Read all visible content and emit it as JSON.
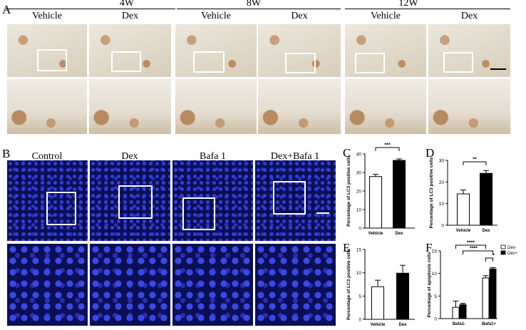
{
  "panelA": {
    "label": "A",
    "groups": [
      {
        "time": "4W",
        "vehicle": "Vehicle",
        "dex": "Dex"
      },
      {
        "time": "8W",
        "vehicle": "Vehicle",
        "dex": "Dex"
      },
      {
        "time": "12W",
        "vehicle": "Vehicle",
        "dex": "Dex"
      }
    ],
    "scalebar_color": "#000000"
  },
  "panelB": {
    "label": "B",
    "columns": [
      "Control",
      "Dex",
      "Bafa 1",
      "Dex+Bafa 1"
    ],
    "scalebar_color": "#ffffff"
  },
  "chart_data": [
    {
      "panel": "C",
      "type": "bar",
      "categories": [
        "Vehicle",
        "Dex"
      ],
      "values": [
        27.8,
        36.5
      ],
      "errors": [
        1.2,
        0.8
      ],
      "ylabel": "Percentage of LC3 positive cells",
      "ylim": [
        0,
        40
      ],
      "yticks": [
        0,
        10,
        20,
        30,
        40
      ],
      "fills": [
        "#ffffff",
        "#000000"
      ],
      "significance": [
        {
          "from": 0,
          "to": 1,
          "label": "***"
        }
      ]
    },
    {
      "panel": "D",
      "type": "bar",
      "categories": [
        "Vehicle",
        "Dex"
      ],
      "values": [
        14.5,
        24.0
      ],
      "errors": [
        1.8,
        1.3
      ],
      "ylabel": "Percentage of LC3 positive cells",
      "ylim": [
        0,
        30
      ],
      "yticks": [
        0,
        10,
        20,
        30
      ],
      "fills": [
        "#ffffff",
        "#000000"
      ],
      "significance": [
        {
          "from": 0,
          "to": 1,
          "label": "**"
        }
      ]
    },
    {
      "panel": "E",
      "type": "bar",
      "categories": [
        "Vehicle",
        "Dex"
      ],
      "values": [
        7.0,
        9.9
      ],
      "errors": [
        1.4,
        1.7
      ],
      "ylabel": "Percentage of LC3 positive cells",
      "ylim": [
        0,
        15
      ],
      "yticks": [
        0,
        5,
        10,
        15
      ],
      "fills": [
        "#ffffff",
        "#000000"
      ],
      "significance": []
    },
    {
      "panel": "F",
      "type": "bar",
      "categories": [
        "Bafa1-",
        "Bafa1+"
      ],
      "series": [
        {
          "name": "Dex-",
          "values": [
            2.5,
            9.0
          ],
          "errors": [
            1.4,
            0.5
          ],
          "fill": "#ffffff"
        },
        {
          "name": "Dex+",
          "values": [
            3.1,
            11.0
          ],
          "errors": [
            0.3,
            0.3
          ],
          "fill": "#000000"
        }
      ],
      "ylabel": "Percentage of apoptosis cells",
      "ylim": [
        0,
        15
      ],
      "yticks": [
        0,
        5,
        10,
        15
      ],
      "legend_position": "top-right",
      "significance": [
        {
          "from": [
            0,
            0
          ],
          "to": [
            1,
            0
          ],
          "label": "****"
        },
        {
          "from": [
            0,
            1
          ],
          "to": [
            1,
            1
          ],
          "label": "****"
        },
        {
          "from": [
            1,
            0
          ],
          "to": [
            1,
            1
          ],
          "label": "*"
        }
      ]
    }
  ]
}
